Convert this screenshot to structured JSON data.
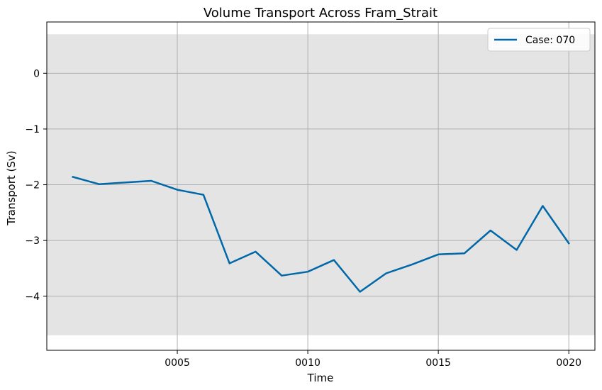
{
  "chart_data": {
    "type": "line",
    "title": "Volume Transport Across Fram_Strait",
    "xlabel": "Time",
    "ylabel": "Transport (Sv)",
    "xlim": [
      0.0,
      21.0
    ],
    "ylim": [
      -4.97,
      0.92
    ],
    "x_ticks": [
      5,
      10,
      15,
      20
    ],
    "x_tick_labels": [
      "0005",
      "0010",
      "0015",
      "0020"
    ],
    "y_ticks": [
      0,
      -1,
      -2,
      -3,
      -4
    ],
    "y_tick_labels": [
      "0",
      "−1",
      "−2",
      "−3",
      "−4"
    ],
    "grid": true,
    "shaded_band": {
      "y_min": -4.7,
      "y_max": 0.7,
      "color": "#e4e4e4"
    },
    "legend_position": "top-right",
    "series": [
      {
        "name": "Case: 070",
        "color": "#0068a8",
        "x": [
          1,
          2,
          3,
          4,
          5,
          6,
          7,
          8,
          9,
          10,
          11,
          12,
          13,
          14,
          15,
          16,
          17,
          18,
          19,
          20
        ],
        "values": [
          -1.86,
          -1.99,
          -1.96,
          -1.93,
          -2.09,
          -2.18,
          -3.41,
          -3.2,
          -3.63,
          -3.56,
          -3.35,
          -3.92,
          -3.59,
          -3.43,
          -3.25,
          -3.23,
          -2.82,
          -3.17,
          -2.38,
          -3.05
        ]
      }
    ]
  }
}
